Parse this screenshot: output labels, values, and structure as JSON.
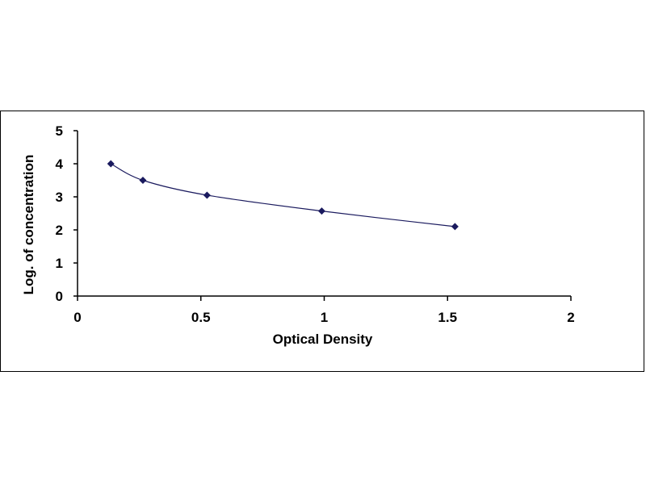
{
  "chart_data": {
    "type": "scatter",
    "title": "",
    "xlabel": "Optical Density",
    "ylabel": "Log. of concentration",
    "xlim": [
      0,
      2
    ],
    "ylim": [
      0,
      5
    ],
    "xticks": [
      0,
      0.5,
      1,
      1.5,
      2
    ],
    "xtick_labels": [
      "0",
      "0.5",
      "1",
      "1.5",
      "2"
    ],
    "yticks": [
      0,
      1,
      2,
      3,
      4,
      5
    ],
    "ytick_labels": [
      "0",
      "1",
      "2",
      "3",
      "4",
      "5"
    ],
    "grid": false,
    "legend": "none",
    "series": [
      {
        "x": [
          0.135,
          0.265,
          0.525,
          0.99,
          1.53
        ],
        "y": [
          4.0,
          3.5,
          3.05,
          2.57,
          2.1
        ],
        "marker": "diamond",
        "color": "#1a1a5e",
        "trendline": "smooth"
      }
    ]
  }
}
